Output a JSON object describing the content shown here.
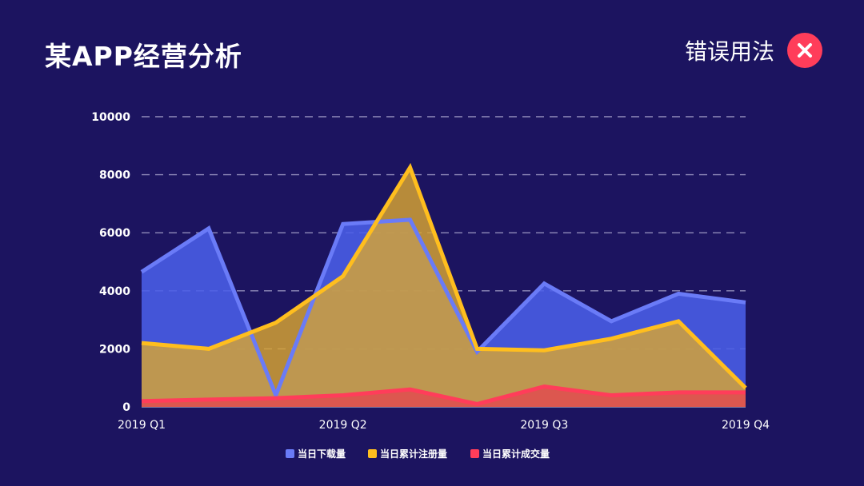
{
  "page": {
    "title": "某APP经营分析",
    "badge_label": "错误用法",
    "badge_icon": "close-icon"
  },
  "colors": {
    "background": "#1c1460",
    "downloads": "#6a7bf7",
    "downloads_fill": "#4a5ee8",
    "registrations": "#ffbe1e",
    "registrations_fill": "#d9a632",
    "deals": "#ff3d5a",
    "deals_fill": "#e24b4f",
    "grid": "#b8b4d8",
    "error_badge": "#ff3d5a"
  },
  "chart_data": {
    "type": "area",
    "title": "",
    "xlabel": "",
    "ylabel": "",
    "ylim": [
      0,
      10000
    ],
    "yticks": [
      "0",
      "2000",
      "4000",
      "6000",
      "8000",
      "10000"
    ],
    "x_tick_labels": [
      "2019 Q1",
      "2019 Q2",
      "2019 Q3",
      "2019 Q4"
    ],
    "x_points": 10,
    "grid": "horizontal dashed",
    "legend_position": "bottom",
    "series": [
      {
        "name": "当日下载量",
        "values": [
          4650,
          6150,
          400,
          6300,
          6450,
          1900,
          4250,
          2950,
          3900,
          3600
        ]
      },
      {
        "name": "当日累计注册量",
        "values": [
          2200,
          2000,
          2900,
          4500,
          8250,
          2000,
          1950,
          2350,
          2950,
          650
        ]
      },
      {
        "name": "当日累计成交量",
        "values": [
          200,
          250,
          300,
          400,
          600,
          100,
          700,
          400,
          500,
          500
        ]
      }
    ]
  }
}
